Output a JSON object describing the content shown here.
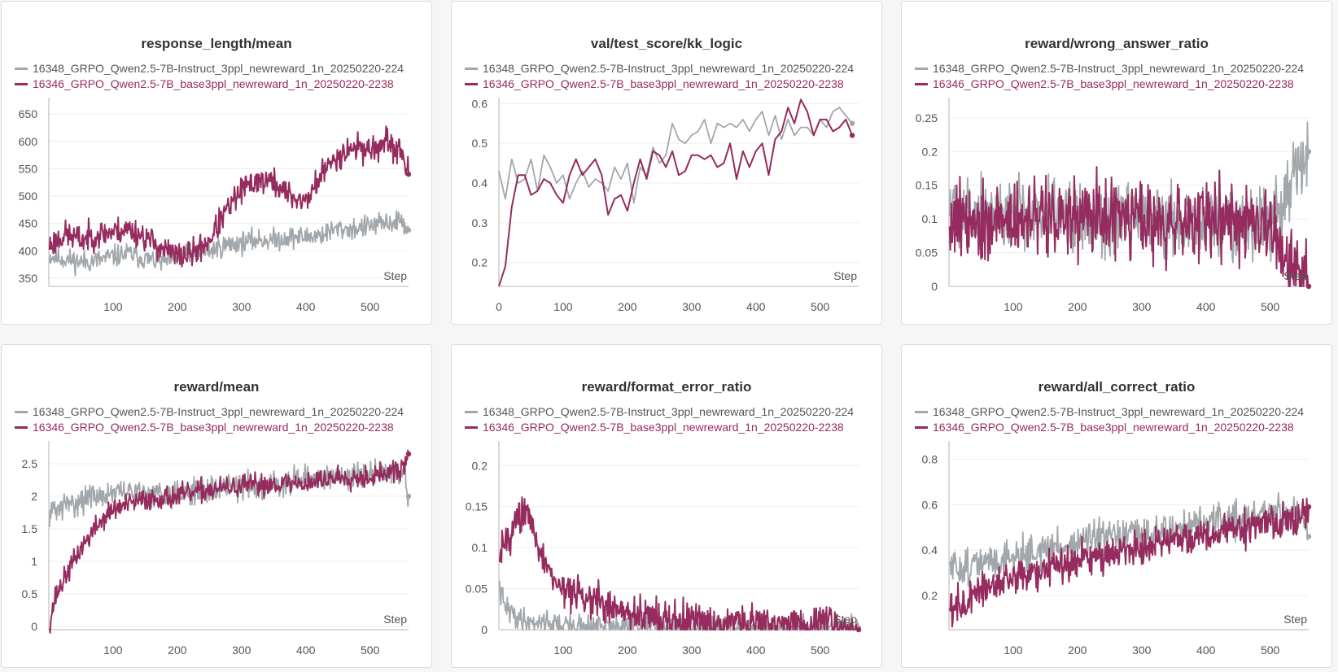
{
  "colors": {
    "gray": "#a2a7ab",
    "crimson": "#952b5e",
    "grid": "#ededed",
    "axis": "#d9d9d9",
    "text": "#555555"
  },
  "legend": {
    "series_a": "16348_GRPO_Qwen2.5-7B-Instruct_3ppl_newreward_1n_20250220-224",
    "series_b": "16346_GRPO_Qwen2.5-7B_base3ppl_newreward_1n_20250220-2238"
  },
  "chart_data": [
    {
      "type": "line",
      "title": "response_length/mean",
      "xlabel": "Step",
      "xlim": [
        0,
        560
      ],
      "ylim": [
        335,
        680
      ],
      "xticks": [
        100,
        200,
        300,
        400,
        500
      ],
      "yticks": [
        350,
        400,
        450,
        500,
        550,
        600,
        650
      ],
      "series": [
        {
          "name": "16348_GRPO_Qwen2.5-7B-Instruct_3ppl_newreward_1n_20250220-224",
          "color": "#a2a7ab",
          "x": [
            1,
            25,
            50,
            75,
            100,
            125,
            150,
            175,
            200,
            225,
            250,
            275,
            300,
            325,
            350,
            375,
            400,
            425,
            450,
            475,
            500,
            525,
            550,
            560
          ],
          "y": [
            390,
            385,
            380,
            382,
            390,
            395,
            385,
            380,
            385,
            395,
            400,
            410,
            415,
            420,
            420,
            425,
            425,
            430,
            440,
            440,
            445,
            450,
            455,
            438
          ],
          "noise": 20,
          "seed": 11
        },
        {
          "name": "16346_GRPO_Qwen2.5-7B_base3ppl_newreward_1n_20250220-2238",
          "color": "#952b5e",
          "x": [
            1,
            25,
            50,
            75,
            100,
            125,
            150,
            175,
            200,
            225,
            250,
            275,
            300,
            325,
            350,
            375,
            400,
            425,
            450,
            475,
            500,
            525,
            550,
            560
          ],
          "y": [
            410,
            430,
            420,
            430,
            435,
            440,
            425,
            405,
            390,
            395,
            420,
            470,
            510,
            530,
            525,
            500,
            490,
            540,
            575,
            590,
            585,
            595,
            580,
            540
          ],
          "noise": 25,
          "seed": 23
        }
      ]
    },
    {
      "type": "line",
      "title": "val/test_score/kk_logic",
      "xlabel": "Step",
      "xlim": [
        0,
        560
      ],
      "ylim": [
        0.14,
        0.615
      ],
      "xticks": [
        0,
        100,
        200,
        300,
        400,
        500
      ],
      "yticks": [
        0.2,
        0.3,
        0.4,
        0.5,
        0.6
      ],
      "series": [
        {
          "name": "16348_GRPO_Qwen2.5-7B-Instruct_3ppl_newreward_1n_20250220-224",
          "color": "#a2a7ab",
          "x": [
            0,
            10,
            20,
            30,
            40,
            50,
            60,
            70,
            80,
            90,
            100,
            110,
            120,
            130,
            140,
            150,
            160,
            170,
            180,
            190,
            200,
            210,
            220,
            230,
            240,
            250,
            260,
            270,
            280,
            290,
            300,
            310,
            320,
            330,
            340,
            350,
            360,
            370,
            380,
            390,
            400,
            410,
            420,
            430,
            440,
            450,
            460,
            470,
            480,
            490,
            500,
            510,
            520,
            530,
            540,
            550
          ],
          "y": [
            0.43,
            0.36,
            0.46,
            0.4,
            0.41,
            0.46,
            0.38,
            0.47,
            0.44,
            0.4,
            0.42,
            0.36,
            0.4,
            0.43,
            0.39,
            0.41,
            0.4,
            0.38,
            0.44,
            0.41,
            0.45,
            0.35,
            0.44,
            0.42,
            0.49,
            0.45,
            0.47,
            0.55,
            0.51,
            0.5,
            0.52,
            0.53,
            0.56,
            0.5,
            0.55,
            0.54,
            0.55,
            0.54,
            0.56,
            0.53,
            0.56,
            0.58,
            0.52,
            0.57,
            0.51,
            0.56,
            0.52,
            0.54,
            0.54,
            0.52,
            0.56,
            0.54,
            0.58,
            0.59,
            0.57,
            0.55
          ],
          "end_marker": true
        },
        {
          "name": "16346_GRPO_Qwen2.5-7B_base3ppl_newreward_1n_20250220-2238",
          "color": "#952b5e",
          "x": [
            0,
            10,
            20,
            30,
            40,
            50,
            60,
            70,
            80,
            90,
            100,
            110,
            120,
            130,
            140,
            150,
            160,
            170,
            180,
            190,
            200,
            210,
            220,
            230,
            240,
            250,
            260,
            270,
            280,
            290,
            300,
            310,
            320,
            330,
            340,
            350,
            360,
            370,
            380,
            390,
            400,
            410,
            420,
            430,
            440,
            450,
            460,
            470,
            480,
            490,
            500,
            510,
            520,
            530,
            540,
            550
          ],
          "y": [
            0.14,
            0.19,
            0.34,
            0.42,
            0.42,
            0.37,
            0.38,
            0.41,
            0.4,
            0.37,
            0.35,
            0.42,
            0.46,
            0.42,
            0.44,
            0.46,
            0.42,
            0.32,
            0.36,
            0.37,
            0.33,
            0.4,
            0.46,
            0.41,
            0.48,
            0.47,
            0.44,
            0.48,
            0.42,
            0.43,
            0.47,
            0.47,
            0.46,
            0.47,
            0.44,
            0.45,
            0.5,
            0.41,
            0.48,
            0.44,
            0.48,
            0.5,
            0.42,
            0.51,
            0.53,
            0.59,
            0.55,
            0.61,
            0.58,
            0.52,
            0.56,
            0.56,
            0.53,
            0.54,
            0.56,
            0.52
          ],
          "end_marker": true
        }
      ]
    },
    {
      "type": "line",
      "title": "reward/wrong_answer_ratio",
      "xlabel": "Step",
      "xlim": [
        0,
        560
      ],
      "ylim": [
        0,
        0.28
      ],
      "xticks": [
        100,
        200,
        300,
        400,
        500
      ],
      "yticks": [
        0,
        0.05,
        0.1,
        0.15,
        0.2,
        0.25
      ],
      "series": [
        {
          "name": "16348_GRPO_Qwen2.5-7B-Instruct_3ppl_newreward_1n_20250220-224",
          "color": "#a2a7ab",
          "x": [
            1,
            100,
            200,
            300,
            400,
            500,
            560
          ],
          "y": [
            0.12,
            0.11,
            0.1,
            0.1,
            0.095,
            0.09,
            0.2
          ],
          "noise": 0.055,
          "seed": 5,
          "clamp": [
            0,
            0.27
          ]
        },
        {
          "name": "16346_GRPO_Qwen2.5-7B_base3ppl_newreward_1n_20250220-2238",
          "color": "#952b5e",
          "x": [
            1,
            100,
            200,
            300,
            400,
            500,
            560
          ],
          "y": [
            0.1,
            0.1,
            0.1,
            0.1,
            0.095,
            0.09,
            0
          ],
          "noise": 0.06,
          "seed": 9,
          "clamp": [
            0,
            0.28
          ]
        }
      ]
    },
    {
      "type": "line",
      "title": "reward/mean",
      "xlabel": "Step",
      "xlim": [
        0,
        560
      ],
      "ylim": [
        -0.05,
        2.85
      ],
      "xticks": [
        100,
        200,
        300,
        400,
        500
      ],
      "yticks": [
        0,
        0.5,
        1,
        1.5,
        2,
        2.5
      ],
      "series": [
        {
          "name": "16348_GRPO_Qwen2.5-7B-Instruct_3ppl_newreward_1n_20250220-224",
          "color": "#a2a7ab",
          "x": [
            1,
            50,
            100,
            150,
            200,
            250,
            300,
            350,
            400,
            450,
            500,
            550,
            560
          ],
          "y": [
            1.75,
            1.95,
            2.05,
            2.05,
            2.05,
            2.1,
            2.15,
            2.2,
            2.25,
            2.3,
            2.35,
            2.4,
            2.0
          ],
          "noise": 0.2,
          "seed": 31
        },
        {
          "name": "16346_GRPO_Qwen2.5-7B_base3ppl_newreward_1n_20250220-2238",
          "color": "#952b5e",
          "x": [
            1,
            10,
            25,
            50,
            75,
            100,
            150,
            200,
            250,
            300,
            350,
            400,
            450,
            500,
            550,
            560
          ],
          "y": [
            0.05,
            0.45,
            0.75,
            1.2,
            1.55,
            1.8,
            1.95,
            2.0,
            2.1,
            2.15,
            2.2,
            2.2,
            2.3,
            2.3,
            2.4,
            2.65
          ],
          "noise": 0.17,
          "seed": 37
        }
      ]
    },
    {
      "type": "line",
      "title": "reward/format_error_ratio",
      "xlabel": "Step",
      "xlim": [
        0,
        560
      ],
      "ylim": [
        0,
        0.23
      ],
      "xticks": [
        100,
        200,
        300,
        400,
        500
      ],
      "yticks": [
        0,
        0.05,
        0.1,
        0.15,
        0.2
      ],
      "series": [
        {
          "name": "16348_GRPO_Qwen2.5-7B-Instruct_3ppl_newreward_1n_20250220-224",
          "color": "#a2a7ab",
          "x": [
            1,
            8,
            20,
            40,
            70,
            100,
            150,
            200,
            300,
            560
          ],
          "y": [
            0.05,
            0.03,
            0.02,
            0.01,
            0.01,
            0.005,
            0.004,
            0.003,
            0.002,
            0.002
          ],
          "noise": 0.015,
          "seed": 41,
          "clamp": [
            0,
            0.08
          ]
        },
        {
          "name": "16346_GRPO_Qwen2.5-7B_base3ppl_newreward_1n_20250220-2238",
          "color": "#952b5e",
          "x": [
            1,
            20,
            40,
            60,
            80,
            100,
            130,
            160,
            200,
            250,
            300,
            400,
            500,
            560
          ],
          "y": [
            0.1,
            0.12,
            0.15,
            0.1,
            0.07,
            0.05,
            0.04,
            0.03,
            0.02,
            0.015,
            0.01,
            0.007,
            0.006,
            0
          ],
          "noise": 0.022,
          "seed": 43,
          "clamp": [
            0,
            0.23
          ]
        }
      ]
    },
    {
      "type": "line",
      "title": "reward/all_correct_ratio",
      "xlabel": "Step",
      "xlim": [
        0,
        560
      ],
      "ylim": [
        0.05,
        0.88
      ],
      "xticks": [
        100,
        200,
        300,
        400,
        500
      ],
      "yticks": [
        0.2,
        0.4,
        0.6,
        0.8
      ],
      "series": [
        {
          "name": "16348_GRPO_Qwen2.5-7B-Instruct_3ppl_newreward_1n_20250220-224",
          "color": "#a2a7ab",
          "x": [
            1,
            50,
            100,
            150,
            200,
            250,
            300,
            350,
            400,
            450,
            500,
            550,
            560
          ],
          "y": [
            0.32,
            0.34,
            0.37,
            0.4,
            0.43,
            0.45,
            0.47,
            0.49,
            0.52,
            0.54,
            0.56,
            0.57,
            0.46
          ],
          "noise": 0.08,
          "seed": 51
        },
        {
          "name": "16346_GRPO_Qwen2.5-7B_base3ppl_newreward_1n_20250220-2238",
          "color": "#952b5e",
          "x": [
            1,
            50,
            100,
            150,
            200,
            250,
            300,
            350,
            400,
            450,
            500,
            550,
            560
          ],
          "y": [
            0.14,
            0.22,
            0.27,
            0.32,
            0.36,
            0.39,
            0.42,
            0.45,
            0.47,
            0.49,
            0.52,
            0.54,
            0.59
          ],
          "noise": 0.08,
          "seed": 57
        }
      ]
    }
  ]
}
